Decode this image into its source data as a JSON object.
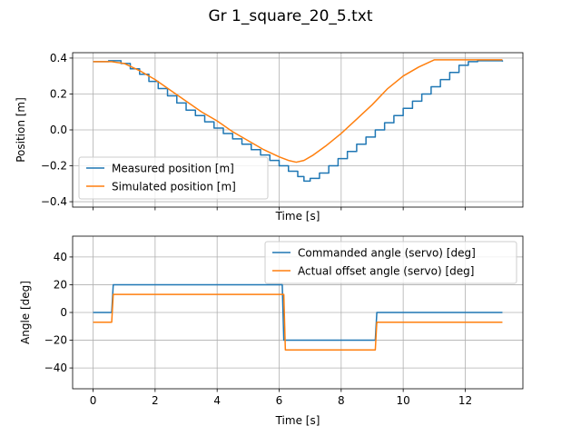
{
  "figure_title": "Gr 1_square_20_5.txt",
  "chart_data": [
    {
      "type": "line",
      "xlabel": "Time [s]",
      "ylabel": "Position [m]",
      "xlim": [
        -0.66,
        13.86
      ],
      "ylim": [
        -0.43,
        0.43
      ],
      "yticks": [
        -0.4,
        -0.2,
        0.0,
        0.2,
        0.4
      ],
      "ytick_labels": [
        "−0.4",
        "−0.2",
        "0.0",
        "0.2",
        "0.4"
      ],
      "xticks": [
        0,
        2,
        4,
        6,
        8,
        10,
        12
      ],
      "show_xtick_labels": false,
      "grid": true,
      "legend_position": "lower-left",
      "series": [
        {
          "name": "Measured position [m]",
          "color": "#1f77b4",
          "step": true,
          "x": [
            0,
            0.5,
            0.9,
            1.2,
            1.5,
            1.8,
            2.1,
            2.4,
            2.7,
            3.0,
            3.3,
            3.6,
            3.9,
            4.2,
            4.5,
            4.8,
            5.1,
            5.4,
            5.7,
            6.0,
            6.3,
            6.6,
            6.8,
            7.0,
            7.3,
            7.6,
            7.9,
            8.2,
            8.5,
            8.8,
            9.1,
            9.4,
            9.7,
            10.0,
            10.3,
            10.6,
            10.9,
            11.2,
            11.5,
            11.8,
            12.1,
            12.4,
            13.2
          ],
          "y": [
            0.38,
            0.385,
            0.37,
            0.34,
            0.31,
            0.27,
            0.23,
            0.19,
            0.15,
            0.11,
            0.08,
            0.045,
            0.01,
            -0.02,
            -0.05,
            -0.08,
            -0.11,
            -0.14,
            -0.17,
            -0.2,
            -0.23,
            -0.26,
            -0.285,
            -0.27,
            -0.24,
            -0.2,
            -0.16,
            -0.12,
            -0.08,
            -0.04,
            0.0,
            0.04,
            0.08,
            0.12,
            0.16,
            0.2,
            0.24,
            0.28,
            0.32,
            0.36,
            0.38,
            0.385,
            0.38
          ]
        },
        {
          "name": "Simulated position [m]",
          "color": "#ff7f0e",
          "step": false,
          "x": [
            0,
            0.6,
            1.0,
            1.5,
            2.0,
            2.5,
            3.0,
            3.5,
            4.0,
            4.5,
            5.0,
            5.5,
            6.0,
            6.3,
            6.55,
            6.8,
            7.1,
            7.5,
            8.0,
            8.5,
            9.0,
            9.5,
            10.0,
            10.5,
            11.0,
            11.5,
            12.0,
            13.2
          ],
          "y": [
            0.38,
            0.38,
            0.37,
            0.33,
            0.28,
            0.22,
            0.16,
            0.1,
            0.05,
            -0.01,
            -0.06,
            -0.11,
            -0.15,
            -0.17,
            -0.18,
            -0.17,
            -0.14,
            -0.09,
            -0.02,
            0.06,
            0.14,
            0.23,
            0.3,
            0.35,
            0.39,
            0.39,
            0.39,
            0.39
          ]
        }
      ]
    },
    {
      "type": "line",
      "xlabel": "Time [s]",
      "ylabel": "Angle [deg]",
      "xlim": [
        -0.66,
        13.86
      ],
      "ylim": [
        -55,
        55
      ],
      "yticks": [
        -40,
        -20,
        0,
        20,
        40
      ],
      "ytick_labels": [
        "−40",
        "−20",
        "0",
        "20",
        "40"
      ],
      "xticks": [
        0,
        2,
        4,
        6,
        8,
        10,
        12
      ],
      "xtick_labels": [
        "0",
        "2",
        "4",
        "6",
        "8",
        "10",
        "12"
      ],
      "grid": true,
      "legend_position": "upper-right",
      "series": [
        {
          "name": "Commanded angle (servo) [deg]",
          "color": "#1f77b4",
          "step": false,
          "x": [
            0,
            0.6,
            0.65,
            6.1,
            6.15,
            9.1,
            9.15,
            13.2
          ],
          "y": [
            0,
            0,
            20,
            20,
            -20,
            -20,
            0,
            0
          ]
        },
        {
          "name": "Actual offset angle (servo) [deg]",
          "color": "#ff7f0e",
          "step": false,
          "x": [
            0,
            0.6,
            0.65,
            6.15,
            6.2,
            9.1,
            9.15,
            13.2
          ],
          "y": [
            -7,
            -7,
            13,
            13,
            -27,
            -27,
            -7,
            -7
          ]
        }
      ]
    }
  ]
}
